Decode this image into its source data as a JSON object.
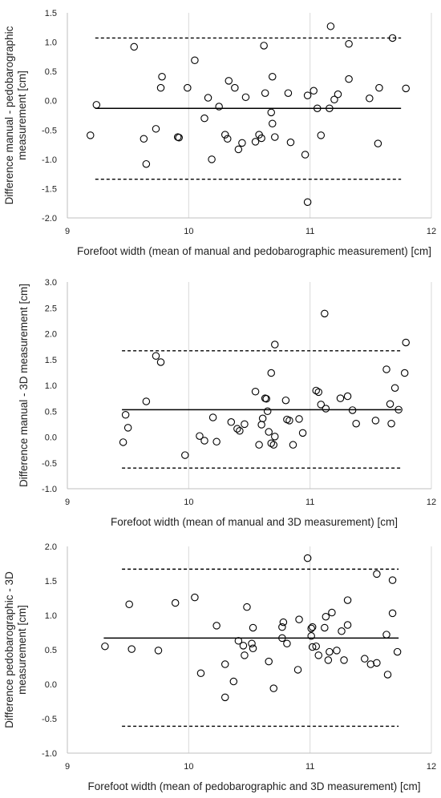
{
  "chart_data": [
    {
      "type": "scatter",
      "title": "",
      "xlabel": "Forefoot width (mean of manual and pedobarographic measurement) [cm]",
      "ylabel": "Difference manual - pedobarographic measurement [cm]",
      "ylabel_lines": [
        "Difference manual - pedobarographic",
        "measurement [cm]"
      ],
      "xlim": [
        9,
        12
      ],
      "ylim": [
        -2.0,
        1.5
      ],
      "xticks": [
        9,
        10,
        11,
        12
      ],
      "xtick_labels": [
        "9",
        "10",
        "11",
        "12"
      ],
      "yticks": [
        -2.0,
        -1.5,
        -1.0,
        -0.5,
        0.0,
        0.5,
        1.0,
        1.5
      ],
      "ytick_labels": [
        "-2.0",
        "-1.5",
        "-1.0",
        "-0.5",
        "0.0",
        "0.5",
        "1.0",
        "1.5"
      ],
      "grid": "vertical",
      "marker": "open-circle",
      "mean_line": {
        "y": -0.13,
        "x_range": [
          9.23,
          11.75
        ]
      },
      "limit_lines": [
        {
          "y": 1.07,
          "x_range": [
            9.23,
            11.75
          ]
        },
        {
          "y": -1.34,
          "x_range": [
            9.23,
            11.75
          ]
        }
      ],
      "points": [
        [
          9.19,
          -0.59
        ],
        [
          9.24,
          -0.07
        ],
        [
          9.55,
          0.92
        ],
        [
          9.63,
          -0.65
        ],
        [
          9.65,
          -1.08
        ],
        [
          9.73,
          -0.48
        ],
        [
          9.77,
          0.22
        ],
        [
          9.78,
          0.41
        ],
        [
          9.91,
          -0.62
        ],
        [
          9.92,
          -0.63
        ],
        [
          9.99,
          0.22
        ],
        [
          10.05,
          0.69
        ],
        [
          10.13,
          -0.3
        ],
        [
          10.16,
          0.05
        ],
        [
          10.19,
          -1.0
        ],
        [
          10.25,
          -0.1
        ],
        [
          10.3,
          -0.58
        ],
        [
          10.32,
          -0.65
        ],
        [
          10.33,
          0.34
        ],
        [
          10.38,
          0.22
        ],
        [
          10.41,
          -0.83
        ],
        [
          10.44,
          -0.72
        ],
        [
          10.47,
          0.06
        ],
        [
          10.55,
          -0.7
        ],
        [
          10.58,
          -0.58
        ],
        [
          10.6,
          -0.64
        ],
        [
          10.62,
          0.94
        ],
        [
          10.63,
          0.13
        ],
        [
          10.68,
          -0.2
        ],
        [
          10.69,
          -0.39
        ],
        [
          10.69,
          0.41
        ],
        [
          10.71,
          -0.62
        ],
        [
          10.82,
          0.13
        ],
        [
          10.84,
          -0.71
        ],
        [
          10.96,
          -0.92
        ],
        [
          10.98,
          0.09
        ],
        [
          10.98,
          -1.73
        ],
        [
          11.03,
          0.17
        ],
        [
          11.06,
          -0.13
        ],
        [
          11.09,
          -0.59
        ],
        [
          11.16,
          -0.13
        ],
        [
          11.17,
          1.27
        ],
        [
          11.2,
          0.02
        ],
        [
          11.23,
          0.11
        ],
        [
          11.32,
          0.97
        ],
        [
          11.32,
          0.37
        ],
        [
          11.49,
          0.04
        ],
        [
          11.56,
          -0.73
        ],
        [
          11.57,
          0.22
        ],
        [
          11.68,
          1.07
        ],
        [
          11.79,
          0.21
        ]
      ]
    },
    {
      "type": "scatter",
      "title": "",
      "xlabel": "Forefoot width (mean of manual and 3D measurement) [cm]",
      "ylabel": "Difference manual - 3D measurement [cm]",
      "ylabel_lines": [
        "Difference manual - 3D measurement [cm]"
      ],
      "xlim": [
        9,
        12
      ],
      "ylim": [
        -1.0,
        3.0
      ],
      "xticks": [
        9,
        10,
        11,
        12
      ],
      "xtick_labels": [
        "9",
        "10",
        "11",
        "12"
      ],
      "yticks": [
        -1.0,
        -0.5,
        0.0,
        0.5,
        1.0,
        1.5,
        2.0,
        2.5,
        3.0
      ],
      "ytick_labels": [
        "-1.0",
        "-0.5",
        "0.0",
        "0.5",
        "1.0",
        "1.5",
        "2.0",
        "2.5",
        "3.0"
      ],
      "grid": "vertical",
      "marker": "open-circle",
      "mean_line": {
        "y": 0.53,
        "x_range": [
          9.45,
          11.75
        ]
      },
      "limit_lines": [
        {
          "y": 1.67,
          "x_range": [
            9.45,
            11.75
          ]
        },
        {
          "y": -0.6,
          "x_range": [
            9.45,
            11.75
          ]
        }
      ],
      "points": [
        [
          9.46,
          -0.1
        ],
        [
          9.48,
          0.43
        ],
        [
          9.5,
          0.18
        ],
        [
          9.65,
          0.69
        ],
        [
          9.73,
          1.57
        ],
        [
          9.77,
          1.45
        ],
        [
          9.97,
          -0.35
        ],
        [
          10.2,
          0.38
        ],
        [
          10.23,
          -0.09
        ],
        [
          10.09,
          0.02
        ],
        [
          10.13,
          -0.07
        ],
        [
          10.35,
          0.29
        ],
        [
          10.4,
          0.16
        ],
        [
          10.42,
          0.12
        ],
        [
          10.46,
          0.25
        ],
        [
          10.55,
          0.88
        ],
        [
          10.58,
          -0.15
        ],
        [
          10.6,
          0.24
        ],
        [
          10.61,
          0.36
        ],
        [
          10.63,
          0.75
        ],
        [
          10.64,
          0.74
        ],
        [
          10.65,
          0.5
        ],
        [
          10.66,
          0.1
        ],
        [
          10.68,
          -0.12
        ],
        [
          10.68,
          1.24
        ],
        [
          10.7,
          -0.15
        ],
        [
          10.71,
          0.01
        ],
        [
          10.71,
          1.79
        ],
        [
          10.8,
          0.71
        ],
        [
          10.81,
          0.34
        ],
        [
          10.83,
          0.32
        ],
        [
          10.86,
          -0.15
        ],
        [
          10.91,
          0.35
        ],
        [
          10.94,
          0.08
        ],
        [
          11.05,
          0.9
        ],
        [
          11.07,
          0.87
        ],
        [
          11.09,
          0.63
        ],
        [
          11.12,
          2.39
        ],
        [
          11.13,
          0.55
        ],
        [
          11.25,
          0.75
        ],
        [
          11.31,
          0.79
        ],
        [
          11.35,
          0.52
        ],
        [
          11.38,
          0.26
        ],
        [
          11.54,
          0.32
        ],
        [
          11.63,
          1.31
        ],
        [
          11.66,
          0.64
        ],
        [
          11.67,
          0.26
        ],
        [
          11.7,
          0.95
        ],
        [
          11.73,
          0.53
        ],
        [
          11.78,
          1.24
        ],
        [
          11.79,
          1.83
        ]
      ]
    },
    {
      "type": "scatter",
      "title": "",
      "xlabel": "Forefoot width (mean of pedobarographic and 3D measurement) [cm]",
      "ylabel": "Difference pedobarographic - 3D measurement [cm]",
      "ylabel_lines": [
        "Difference pedobarographic - 3D",
        "measurement [cm]"
      ],
      "xlim": [
        9,
        12
      ],
      "ylim": [
        -1.0,
        2.0
      ],
      "xticks": [
        9,
        10,
        11,
        12
      ],
      "xtick_labels": [
        "9",
        "10",
        "11",
        "12"
      ],
      "yticks": [
        -1.0,
        -0.5,
        0.0,
        0.5,
        1.0,
        1.5,
        2.0
      ],
      "ytick_labels": [
        "-1.0",
        "-0.5",
        "0.0",
        "0.5",
        "1.0",
        "1.5",
        "2.0"
      ],
      "grid": "vertical",
      "marker": "open-circle",
      "mean_line": {
        "y": 0.67,
        "x_range": [
          9.3,
          11.73
        ]
      },
      "limit_lines": [
        {
          "y": 1.67,
          "x_range": [
            9.45,
            11.73
          ]
        },
        {
          "y": -0.61,
          "x_range": [
            9.45,
            11.73
          ]
        }
      ],
      "points": [
        [
          9.31,
          0.55
        ],
        [
          9.51,
          1.16
        ],
        [
          9.53,
          0.51
        ],
        [
          9.75,
          0.49
        ],
        [
          9.89,
          1.18
        ],
        [
          10.05,
          1.26
        ],
        [
          10.1,
          0.16
        ],
        [
          10.23,
          0.85
        ],
        [
          10.3,
          0.29
        ],
        [
          10.3,
          -0.19
        ],
        [
          10.37,
          0.04
        ],
        [
          10.41,
          0.63
        ],
        [
          10.45,
          0.56
        ],
        [
          10.46,
          0.42
        ],
        [
          10.48,
          1.12
        ],
        [
          10.52,
          0.59
        ],
        [
          10.53,
          0.52
        ],
        [
          10.53,
          0.82
        ],
        [
          10.66,
          0.33
        ],
        [
          10.7,
          -0.06
        ],
        [
          10.77,
          0.67
        ],
        [
          10.77,
          0.83
        ],
        [
          10.78,
          0.9
        ],
        [
          10.81,
          0.59
        ],
        [
          10.9,
          0.21
        ],
        [
          10.91,
          0.94
        ],
        [
          10.98,
          1.83
        ],
        [
          11.01,
          0.81
        ],
        [
          11.01,
          0.7
        ],
        [
          11.02,
          0.83
        ],
        [
          11.02,
          0.54
        ],
        [
          11.05,
          0.55
        ],
        [
          11.07,
          0.42
        ],
        [
          11.12,
          0.82
        ],
        [
          11.13,
          0.98
        ],
        [
          11.15,
          0.35
        ],
        [
          11.16,
          0.47
        ],
        [
          11.18,
          1.04
        ],
        [
          11.22,
          0.49
        ],
        [
          11.26,
          0.77
        ],
        [
          11.28,
          0.35
        ],
        [
          11.31,
          0.86
        ],
        [
          11.31,
          1.22
        ],
        [
          11.45,
          0.37
        ],
        [
          11.5,
          0.29
        ],
        [
          11.55,
          0.31
        ],
        [
          11.55,
          1.6
        ],
        [
          11.63,
          0.72
        ],
        [
          11.64,
          0.14
        ],
        [
          11.68,
          1.03
        ],
        [
          11.68,
          1.51
        ],
        [
          11.72,
          0.47
        ]
      ]
    }
  ]
}
